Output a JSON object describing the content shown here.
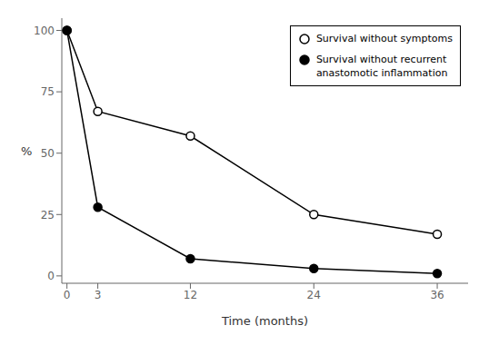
{
  "chart_data": {
    "type": "line",
    "xlabel": "Time (months)",
    "ylabel": "%",
    "x": [
      0,
      3,
      12,
      24,
      36
    ],
    "series": [
      {
        "name": "Survival without symptoms",
        "color": "#000000",
        "marker": "circle_open",
        "values": [
          100,
          67,
          57,
          25,
          17
        ]
      },
      {
        "name": "Survival without recurrent\nanastomotic inflammation",
        "color": "#000000",
        "marker": "circle",
        "values": [
          100,
          28,
          7,
          3,
          1
        ]
      }
    ],
    "xlim": [
      -0.5,
      39
    ],
    "ylim": [
      -3,
      105
    ],
    "xticks": [
      0,
      3,
      12,
      24,
      36
    ],
    "yticks": [
      0,
      25,
      50,
      75,
      100
    ],
    "grid": false,
    "legend": "upper right"
  }
}
